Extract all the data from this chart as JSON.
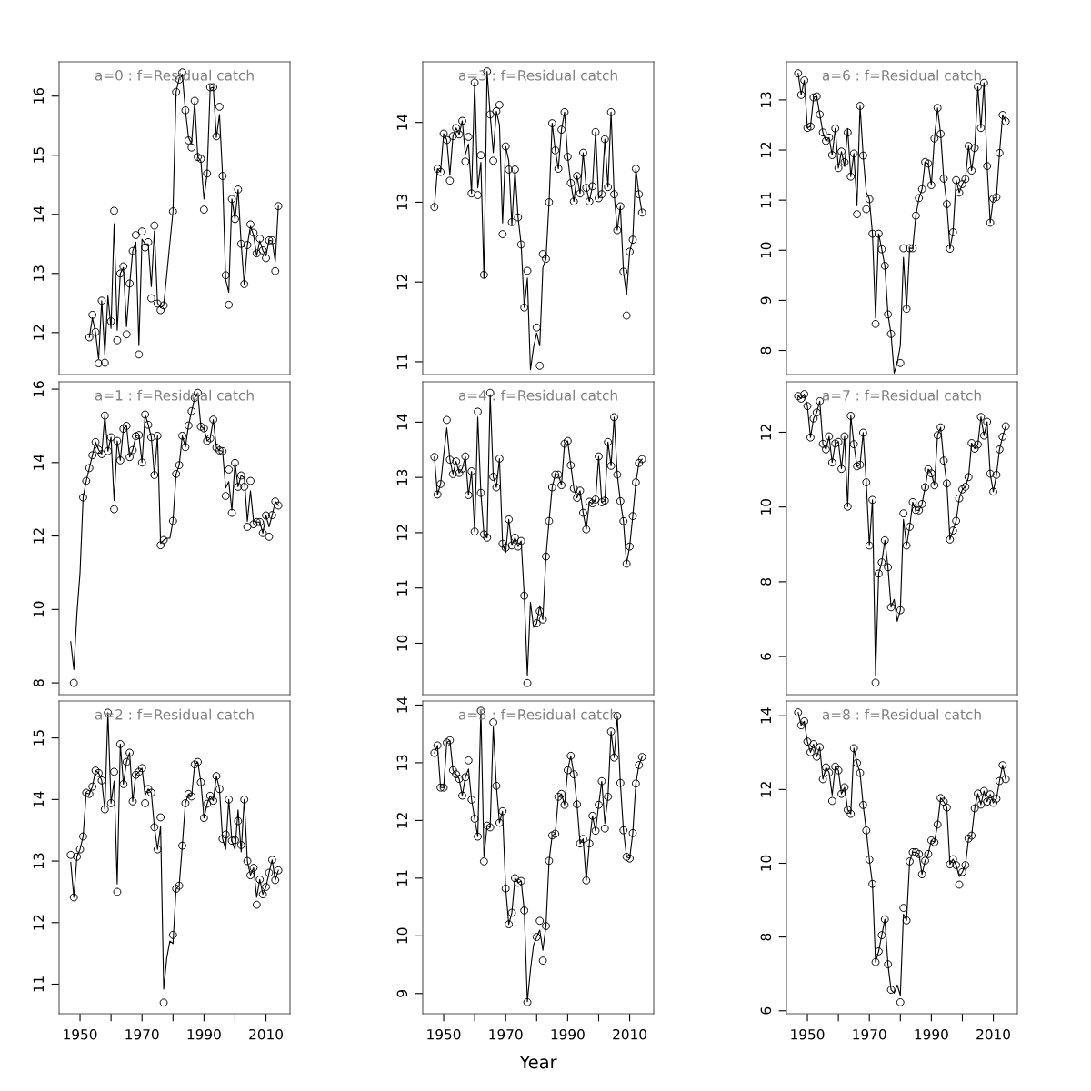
{
  "chart_data": [
    {
      "type": "line",
      "title": "a=0 : f=Residual catch",
      "tick_labels": "y",
      "xlim": [
        1943.24,
        2017.76
      ],
      "ylim": [
        11.29,
        16.58
      ],
      "yticks": [
        12,
        13,
        14,
        15,
        16
      ],
      "x": [
        1953,
        1954,
        1955,
        1956,
        1957,
        1958,
        1959,
        1960,
        1961,
        1962,
        1963,
        1964,
        1965,
        1966,
        1967,
        1968,
        1969,
        1970,
        1971,
        1972,
        1973,
        1974,
        1975,
        1976,
        1977,
        1978,
        1979,
        1980,
        1981,
        1982,
        1983,
        1984,
        1985,
        1986,
        1987,
        1988,
        1989,
        1990,
        1991,
        1992,
        1993,
        1994,
        1995,
        1996,
        1997,
        1998,
        1999,
        2000,
        2001,
        2002,
        2003,
        2004,
        2005,
        2006,
        2007,
        2008,
        2009,
        2010,
        2011,
        2012,
        2013,
        2014
      ],
      "series": [
        {
          "type": "line",
          "color": "#000000",
          "values": [
            11.92,
            12.25,
            12.0,
            11.55,
            12.54,
            11.63,
            12.62,
            12.07,
            13.84,
            12.04,
            13.0,
            13.1,
            12.1,
            12.8,
            13.38,
            13.53,
            11.78,
            13.58,
            13.5,
            13.5,
            12.78,
            13.72,
            12.5,
            12.42,
            12.46,
            12.99,
            13.52,
            14.05,
            16.07,
            16.3,
            16.37,
            15.76,
            15.3,
            15.2,
            15.9,
            14.97,
            14.9,
            14.26,
            14.69,
            16.13,
            16.15,
            15.3,
            15.69,
            14.65,
            12.9,
            12.68,
            14.26,
            13.92,
            14.42,
            13.5,
            12.81,
            13.48,
            13.8,
            13.65,
            13.3,
            13.55,
            13.39,
            13.3,
            13.56,
            13.55,
            13.2,
            14.14
          ]
        },
        {
          "type": "scatter",
          "color": "#000000",
          "marker": "circle",
          "values": [
            11.92,
            12.3,
            12.01,
            11.48,
            12.54,
            11.49,
            null,
            12.19,
            14.06,
            11.87,
            13.0,
            13.12,
            11.97,
            12.83,
            13.38,
            13.65,
            11.63,
            13.71,
            13.44,
            13.53,
            12.58,
            13.81,
            12.49,
            12.38,
            12.46,
            null,
            null,
            14.05,
            16.07,
            16.28,
            16.4,
            15.76,
            15.25,
            15.13,
            15.92,
            14.97,
            14.94,
            14.08,
            14.69,
            16.15,
            16.15,
            15.32,
            15.82,
            14.65,
            12.97,
            12.47,
            14.26,
            13.92,
            14.42,
            13.5,
            12.82,
            13.48,
            13.83,
            13.69,
            13.34,
            13.59,
            13.39,
            13.26,
            13.56,
            13.56,
            13.04,
            14.14
          ]
        }
      ]
    },
    {
      "type": "line",
      "title": "a=3 : f=Residual catch",
      "tick_labels": "y",
      "xlim": [
        1943.24,
        2017.76
      ],
      "ylim": [
        10.84,
        14.76
      ],
      "yticks": [
        11,
        12,
        13,
        14
      ],
      "x": [
        1947,
        1948,
        1949,
        1950,
        1951,
        1952,
        1953,
        1954,
        1955,
        1956,
        1957,
        1958,
        1959,
        1960,
        1961,
        1962,
        1963,
        1964,
        1965,
        1966,
        1967,
        1968,
        1969,
        1970,
        1971,
        1972,
        1973,
        1974,
        1975,
        1976,
        1977,
        1978,
        1979,
        1980,
        1981,
        1982,
        1983,
        1984,
        1985,
        1986,
        1987,
        1988,
        1989,
        1990,
        1991,
        1992,
        1993,
        1994,
        1995,
        1996,
        1997,
        1998,
        1999,
        2000,
        2001,
        2002,
        2003,
        2004,
        2005,
        2006,
        2007,
        2008,
        2009,
        2010,
        2011,
        2012,
        2013,
        2014
      ],
      "series": [
        {
          "type": "line",
          "color": "#000000",
          "values": [
            12.94,
            13.42,
            13.38,
            13.86,
            13.78,
            13.34,
            13.83,
            13.93,
            13.85,
            14.02,
            13.6,
            13.73,
            13.11,
            14.5,
            13.18,
            13.5,
            12.05,
            14.64,
            14.1,
            13.62,
            14.14,
            13.97,
            12.74,
            13.7,
            13.52,
            12.72,
            13.41,
            12.81,
            12.47,
            11.68,
            12.05,
            10.9,
            11.18,
            11.36,
            11.2,
            12.18,
            12.29,
            13.0,
            13.99,
            13.65,
            13.42,
            13.91,
            14.13,
            13.57,
            13.24,
            13.01,
            13.33,
            13.11,
            13.62,
            13.18,
            13.01,
            13.2,
            13.88,
            13.05,
            13.1,
            13.79,
            13.19,
            14.13,
            13.1,
            12.65,
            12.95,
            12.13,
            11.84,
            12.38,
            12.53,
            13.42,
            13.1,
            12.87
          ]
        },
        {
          "type": "scatter",
          "color": "#000000",
          "marker": "circle",
          "values": [
            12.94,
            13.42,
            13.38,
            13.86,
            13.78,
            13.27,
            13.83,
            13.93,
            13.85,
            14.02,
            13.51,
            13.82,
            13.11,
            14.5,
            13.09,
            13.59,
            12.09,
            14.64,
            14.1,
            13.52,
            14.14,
            14.22,
            12.6,
            13.7,
            13.41,
            12.75,
            13.41,
            12.81,
            12.47,
            11.68,
            12.14,
            null,
            null,
            11.43,
            10.95,
            12.35,
            12.29,
            13.0,
            13.99,
            13.65,
            13.42,
            13.91,
            14.13,
            13.57,
            13.24,
            13.01,
            13.33,
            13.11,
            13.62,
            13.18,
            13.01,
            13.2,
            13.88,
            13.05,
            13.1,
            13.79,
            13.19,
            14.13,
            13.1,
            12.65,
            12.95,
            12.13,
            11.58,
            12.38,
            12.53,
            13.42,
            13.1,
            12.87
          ]
        }
      ]
    },
    {
      "type": "line",
      "title": "a=6 : f=Residual catch",
      "tick_labels": "y",
      "xlim": [
        1943.24,
        2017.76
      ],
      "ylim": [
        7.52,
        13.76
      ],
      "yticks": [
        8,
        9,
        10,
        11,
        12,
        13
      ],
      "x": [
        1947,
        1948,
        1949,
        1950,
        1951,
        1952,
        1953,
        1954,
        1955,
        1956,
        1957,
        1958,
        1959,
        1960,
        1961,
        1962,
        1963,
        1964,
        1965,
        1966,
        1967,
        1968,
        1969,
        1970,
        1971,
        1972,
        1973,
        1974,
        1975,
        1976,
        1977,
        1978,
        1979,
        1980,
        1981,
        1982,
        1983,
        1984,
        1985,
        1986,
        1987,
        1988,
        1989,
        1990,
        1991,
        1992,
        1993,
        1994,
        1995,
        1996,
        1997,
        1998,
        1999,
        2000,
        2001,
        2002,
        2003,
        2004,
        2005,
        2006,
        2007,
        2008,
        2009,
        2010,
        2011,
        2012,
        2013,
        2014
      ],
      "series": [
        {
          "type": "line",
          "color": "#000000",
          "values": [
            13.53,
            13.1,
            13.39,
            12.44,
            12.47,
            13.05,
            13.07,
            12.71,
            12.35,
            12.18,
            12.25,
            11.9,
            12.43,
            11.64,
            11.97,
            11.67,
            12.43,
            11.47,
            11.93,
            10.89,
            12.88,
            11.89,
            11.16,
            11.02,
            10.33,
            8.65,
            10.33,
            10.02,
            9.69,
            8.72,
            8.33,
            7.55,
            7.75,
            8.1,
            9.86,
            8.83,
            10.04,
            10.04,
            10.69,
            11.04,
            11.22,
            11.76,
            11.73,
            11.3,
            12.23,
            12.84,
            12.32,
            11.43,
            10.92,
            10.03,
            10.36,
            11.4,
            11.15,
            11.32,
            11.42,
            12.08,
            11.59,
            12.04,
            13.26,
            12.44,
            13.34,
            11.68,
            10.55,
            11.03,
            11.06,
            11.94,
            12.7,
            12.57
          ]
        },
        {
          "type": "scatter",
          "color": "#000000",
          "marker": "circle",
          "values": [
            13.53,
            13.1,
            13.39,
            12.44,
            12.47,
            13.05,
            13.07,
            12.71,
            12.35,
            12.18,
            12.25,
            11.9,
            12.43,
            11.64,
            11.97,
            11.76,
            12.35,
            11.47,
            11.93,
            10.72,
            12.88,
            11.89,
            10.82,
            11.02,
            10.33,
            8.53,
            10.33,
            10.02,
            9.69,
            8.72,
            8.33,
            null,
            null,
            7.75,
            10.04,
            8.83,
            10.04,
            10.04,
            10.69,
            11.04,
            11.22,
            11.76,
            11.73,
            11.3,
            12.23,
            12.84,
            12.32,
            11.43,
            10.92,
            10.03,
            10.36,
            11.4,
            11.15,
            11.32,
            11.42,
            12.08,
            11.59,
            12.04,
            13.26,
            12.44,
            13.34,
            11.68,
            10.55,
            11.03,
            11.06,
            11.94,
            12.7,
            12.57
          ]
        }
      ]
    },
    {
      "type": "line",
      "title": "a=1 : f=Residual catch",
      "tick_labels": "y",
      "xlim": [
        1943.24,
        2017.76
      ],
      "ylim": [
        7.68,
        16.2
      ],
      "yticks": [
        8,
        10,
        12,
        14,
        16
      ],
      "x": [
        1947,
        1948,
        1949,
        1950,
        1951,
        1952,
        1953,
        1954,
        1955,
        1956,
        1957,
        1958,
        1959,
        1960,
        1961,
        1962,
        1963,
        1964,
        1965,
        1966,
        1967,
        1968,
        1969,
        1970,
        1971,
        1972,
        1973,
        1974,
        1975,
        1976,
        1977,
        1978,
        1979,
        1980,
        1981,
        1982,
        1983,
        1984,
        1985,
        1986,
        1987,
        1988,
        1989,
        1990,
        1991,
        1992,
        1993,
        1994,
        1995,
        1996,
        1997,
        1998,
        1999,
        2000,
        2001,
        2002,
        2003,
        2004,
        2005,
        2006,
        2007,
        2008,
        2009,
        2010,
        2011,
        2012,
        2013,
        2014
      ],
      "series": [
        {
          "type": "line",
          "color": "#000000",
          "values": [
            9.12,
            8.36,
            9.9,
            11.0,
            13.05,
            13.5,
            13.85,
            14.2,
            14.56,
            14.35,
            14.23,
            15.28,
            14.31,
            14.69,
            12.97,
            14.59,
            14.06,
            14.92,
            15.0,
            14.15,
            14.34,
            14.72,
            14.75,
            14.0,
            15.31,
            15.03,
            14.69,
            13.66,
            14.73,
            11.8,
            11.89,
            11.94,
            11.94,
            12.41,
            13.69,
            13.93,
            14.73,
            14.42,
            15.01,
            15.4,
            15.76,
            15.9,
            14.98,
            14.93,
            14.59,
            14.66,
            15.17,
            14.41,
            14.33,
            14.31,
            13.31,
            13.48,
            12.7,
            13.99,
            13.34,
            13.65,
            13.59,
            12.4,
            13.23,
            12.4,
            12.38,
            12.38,
            12.08,
            12.56,
            12.25,
            12.57,
            12.94,
            12.83
          ]
        },
        {
          "type": "scatter",
          "color": "#000000",
          "marker": "circle",
          "values": [
            null,
            8.0,
            null,
            null,
            13.05,
            13.5,
            13.85,
            14.2,
            14.56,
            14.35,
            14.23,
            15.28,
            14.31,
            14.69,
            12.73,
            14.59,
            14.06,
            14.92,
            15.0,
            14.15,
            14.34,
            14.72,
            14.75,
            14.0,
            15.31,
            15.03,
            14.69,
            13.66,
            14.73,
            11.75,
            11.89,
            null,
            null,
            12.41,
            13.69,
            13.93,
            14.73,
            14.42,
            15.01,
            15.4,
            15.76,
            15.9,
            14.98,
            14.93,
            14.59,
            14.66,
            15.17,
            14.41,
            14.33,
            14.31,
            13.09,
            13.81,
            12.63,
            13.99,
            13.34,
            13.65,
            13.34,
            12.25,
            13.5,
            12.32,
            12.38,
            12.38,
            12.08,
            12.56,
            11.98,
            12.57,
            12.94,
            12.83
          ]
        }
      ]
    },
    {
      "type": "line",
      "title": "a=4 : f=Residual catch",
      "tick_labels": "y",
      "xlim": [
        1943.24,
        2017.76
      ],
      "ylim": [
        9.07,
        14.73
      ],
      "yticks": [
        10,
        11,
        12,
        13,
        14
      ],
      "x": [
        1947,
        1948,
        1949,
        1950,
        1951,
        1952,
        1953,
        1954,
        1955,
        1956,
        1957,
        1958,
        1959,
        1960,
        1961,
        1962,
        1963,
        1964,
        1965,
        1966,
        1967,
        1968,
        1969,
        1970,
        1971,
        1972,
        1973,
        1974,
        1975,
        1976,
        1977,
        1978,
        1979,
        1980,
        1981,
        1982,
        1983,
        1984,
        1985,
        1986,
        1987,
        1988,
        1989,
        1990,
        1991,
        1992,
        1993,
        1994,
        1995,
        1996,
        1997,
        1998,
        1999,
        2000,
        2001,
        2002,
        2003,
        2004,
        2005,
        2006,
        2007,
        2008,
        2009,
        2010,
        2011,
        2012,
        2013,
        2014
      ],
      "series": [
        {
          "type": "line",
          "color": "#000000",
          "values": [
            13.37,
            12.69,
            12.88,
            13.4,
            13.9,
            13.32,
            13.06,
            13.29,
            13.08,
            13.16,
            13.38,
            12.68,
            13.11,
            12.02,
            14.09,
            12.72,
            11.97,
            11.91,
            14.5,
            13.01,
            12.82,
            13.34,
            11.8,
            11.64,
            12.24,
            11.77,
            11.91,
            11.75,
            11.85,
            10.86,
            9.42,
            10.74,
            10.29,
            10.36,
            10.68,
            10.43,
            11.57,
            12.21,
            12.82,
            13.05,
            13.05,
            12.86,
            13.61,
            13.66,
            13.22,
            12.8,
            12.63,
            12.76,
            12.36,
            12.06,
            12.56,
            12.53,
            12.6,
            13.38,
            12.55,
            12.58,
            13.64,
            13.21,
            14.09,
            13.05,
            12.57,
            12.21,
            11.44,
            11.75,
            12.3,
            12.91,
            13.26,
            13.33
          ]
        },
        {
          "type": "scatter",
          "color": "#000000",
          "marker": "circle",
          "values": [
            13.37,
            12.69,
            12.88,
            null,
            14.04,
            13.32,
            13.06,
            13.29,
            13.08,
            13.16,
            13.38,
            12.68,
            13.11,
            12.02,
            14.19,
            12.72,
            11.97,
            11.91,
            14.53,
            13.01,
            12.82,
            13.34,
            11.8,
            11.73,
            12.24,
            11.77,
            11.91,
            11.75,
            11.85,
            10.86,
            9.28,
            null,
            null,
            10.36,
            10.58,
            10.43,
            11.57,
            12.21,
            12.82,
            13.05,
            13.05,
            12.86,
            13.61,
            13.66,
            13.22,
            12.8,
            12.63,
            12.76,
            12.36,
            12.06,
            12.56,
            12.53,
            12.6,
            13.38,
            12.55,
            12.58,
            13.64,
            13.21,
            14.09,
            13.05,
            12.57,
            12.21,
            11.44,
            11.75,
            12.3,
            12.91,
            13.26,
            13.33
          ]
        }
      ]
    },
    {
      "type": "line",
      "title": "a=7 : f=Residual catch",
      "tick_labels": "y",
      "xlim": [
        1943.24,
        2017.76
      ],
      "ylim": [
        4.98,
        13.35
      ],
      "yticks": [
        6,
        8,
        10,
        12
      ],
      "x": [
        1947,
        1948,
        1949,
        1950,
        1951,
        1952,
        1953,
        1954,
        1955,
        1956,
        1957,
        1958,
        1959,
        1960,
        1961,
        1962,
        1963,
        1964,
        1965,
        1966,
        1967,
        1968,
        1969,
        1970,
        1971,
        1972,
        1973,
        1974,
        1975,
        1976,
        1977,
        1978,
        1979,
        1980,
        1981,
        1982,
        1983,
        1984,
        1985,
        1986,
        1987,
        1988,
        1989,
        1990,
        1991,
        1992,
        1993,
        1994,
        1995,
        1996,
        1997,
        1998,
        1999,
        2000,
        2001,
        2002,
        2003,
        2004,
        2005,
        2006,
        2007,
        2008,
        2009,
        2010,
        2011,
        2012,
        2013,
        2014
      ],
      "series": [
        {
          "type": "line",
          "color": "#000000",
          "values": [
            12.97,
            12.9,
            13.02,
            12.7,
            11.86,
            12.37,
            12.53,
            12.83,
            11.69,
            11.54,
            11.89,
            11.19,
            11.7,
            11.74,
            11.02,
            11.89,
            10.01,
            12.44,
            11.68,
            11.09,
            11.13,
            11.99,
            10.66,
            8.97,
            10.19,
            5.5,
            8.22,
            8.52,
            9.11,
            8.39,
            7.32,
            7.53,
            6.94,
            7.24,
            9.67,
            8.97,
            9.47,
            10.13,
            9.92,
            9.91,
            10.08,
            10.53,
            11.01,
            10.9,
            10.58,
            11.92,
            12.13,
            11.24,
            10.63,
            9.13,
            9.37,
            9.63,
            10.23,
            10.47,
            10.54,
            10.8,
            11.71,
            11.56,
            11.67,
            12.41,
            11.91,
            12.28,
            10.89,
            10.41,
            10.86,
            11.54,
            11.88,
            12.16
          ]
        },
        {
          "type": "scatter",
          "color": "#000000",
          "marker": "circle",
          "values": [
            12.97,
            12.9,
            13.02,
            12.7,
            11.86,
            12.37,
            12.53,
            12.83,
            11.69,
            11.54,
            11.89,
            11.19,
            11.7,
            11.74,
            11.02,
            11.89,
            10.01,
            12.44,
            11.68,
            11.09,
            11.13,
            11.99,
            10.66,
            8.97,
            10.19,
            5.3,
            8.22,
            8.52,
            9.11,
            8.39,
            7.32,
            null,
            null,
            7.24,
            9.83,
            8.97,
            9.47,
            10.13,
            9.92,
            9.91,
            10.08,
            10.53,
            11.01,
            10.9,
            10.58,
            11.92,
            12.13,
            11.24,
            10.63,
            9.13,
            9.37,
            9.63,
            10.23,
            10.47,
            10.54,
            10.8,
            11.71,
            11.56,
            11.67,
            12.41,
            11.91,
            12.28,
            10.89,
            10.41,
            10.86,
            11.54,
            11.88,
            12.16
          ]
        }
      ]
    },
    {
      "type": "line",
      "title": "a=2 : f=Residual catch",
      "xlim": [
        1943.24,
        2017.76
      ],
      "ylim": [
        10.52,
        15.6
      ],
      "yticks": [
        11,
        12,
        13,
        14,
        15
      ],
      "xticks": [
        1950,
        {
          "value": 1960,
          "label": null
        },
        1970,
        {
          "value": 1980,
          "label": null
        },
        1990,
        {
          "value": 2000,
          "label": null
        },
        2010
      ],
      "x": [
        1947,
        1948,
        1949,
        1950,
        1951,
        1952,
        1953,
        1954,
        1955,
        1956,
        1957,
        1958,
        1959,
        1960,
        1961,
        1962,
        1963,
        1964,
        1965,
        1966,
        1967,
        1968,
        1969,
        1970,
        1971,
        1972,
        1973,
        1974,
        1975,
        1976,
        1977,
        1978,
        1979,
        1980,
        1981,
        1982,
        1983,
        1984,
        1985,
        1986,
        1987,
        1988,
        1989,
        1990,
        1991,
        1992,
        1993,
        1994,
        1995,
        1996,
        1997,
        1998,
        1999,
        2000,
        2001,
        2002,
        2003,
        2004,
        2005,
        2006,
        2007,
        2008,
        2009,
        2010,
        2011,
        2012,
        2013,
        2014
      ],
      "series": [
        {
          "type": "line",
          "color": "#000000",
          "values": [
            12.98,
            12.41,
            13.07,
            13.19,
            13.4,
            14.11,
            14.09,
            14.21,
            14.47,
            14.43,
            14.31,
            13.84,
            15.41,
            13.94,
            14.3,
            12.63,
            14.9,
            14.25,
            14.61,
            14.76,
            13.97,
            14.4,
            14.45,
            14.51,
            14.07,
            14.17,
            14.11,
            13.55,
            13.19,
            13.56,
            10.92,
            11.43,
            11.7,
            11.66,
            12.55,
            12.6,
            13.25,
            13.94,
            14.09,
            14.05,
            14.57,
            14.61,
            14.28,
            13.7,
            13.93,
            14.06,
            13.98,
            14.38,
            14.17,
            13.36,
            13.19,
            14.0,
            13.33,
            13.19,
            13.83,
            13.15,
            14.0,
            13.0,
            12.77,
            12.89,
            12.41,
            12.7,
            12.46,
            12.58,
            12.81,
            13.02,
            12.69,
            12.85
          ]
        },
        {
          "type": "scatter",
          "color": "#000000",
          "marker": "circle",
          "values": [
            13.1,
            12.41,
            13.07,
            13.19,
            13.4,
            14.11,
            14.09,
            14.21,
            14.47,
            14.43,
            14.31,
            13.84,
            15.41,
            13.94,
            14.45,
            12.5,
            14.9,
            14.25,
            14.61,
            14.76,
            13.97,
            14.4,
            14.45,
            14.51,
            13.94,
            14.17,
            14.11,
            13.55,
            13.19,
            13.71,
            10.7,
            null,
            null,
            11.8,
            12.55,
            12.6,
            13.25,
            13.94,
            14.09,
            14.05,
            14.57,
            14.61,
            14.28,
            13.7,
            13.93,
            14.06,
            13.98,
            14.38,
            14.17,
            13.36,
            13.43,
            14.0,
            13.33,
            13.34,
            13.65,
            13.26,
            14.0,
            13.0,
            12.77,
            12.89,
            12.29,
            12.7,
            12.46,
            12.58,
            12.81,
            13.02,
            12.69,
            12.85
          ]
        }
      ]
    },
    {
      "type": "line",
      "title": "a=5 : f=Residual catch",
      "xlabel": "Year",
      "xlim": [
        1943.24,
        2017.76
      ],
      "ylim": [
        8.65,
        14.07
      ],
      "yticks": [
        9,
        10,
        11,
        12,
        13,
        14
      ],
      "xticks": [
        1950,
        {
          "value": 1960,
          "label": null
        },
        1970,
        {
          "value": 1980,
          "label": null
        },
        1990,
        {
          "value": 2000,
          "label": null
        },
        2010
      ],
      "x": [
        1947,
        1948,
        1949,
        1950,
        1951,
        1952,
        1953,
        1954,
        1955,
        1956,
        1957,
        1958,
        1959,
        1960,
        1961,
        1962,
        1963,
        1964,
        1965,
        1966,
        1967,
        1968,
        1969,
        1970,
        1971,
        1972,
        1973,
        1974,
        1975,
        1976,
        1977,
        1978,
        1979,
        1980,
        1981,
        1982,
        1983,
        1984,
        1985,
        1986,
        1987,
        1988,
        1989,
        1990,
        1991,
        1992,
        1993,
        1994,
        1995,
        1996,
        1997,
        1998,
        1999,
        2000,
        2001,
        2002,
        2003,
        2004,
        2005,
        2006,
        2007,
        2008,
        2009,
        2010,
        2011,
        2012,
        2013,
        2014
      ],
      "series": [
        {
          "type": "line",
          "color": "#000000",
          "values": [
            13.17,
            13.3,
            12.57,
            12.57,
            13.35,
            13.39,
            12.87,
            12.8,
            12.72,
            12.43,
            12.75,
            12.89,
            12.36,
            12.03,
            11.72,
            13.9,
            11.37,
            11.91,
            11.88,
            13.62,
            12.6,
            11.96,
            12.16,
            10.82,
            10.2,
            10.4,
            11.0,
            10.92,
            10.95,
            10.44,
            8.86,
            9.41,
            9.84,
            9.98,
            10.1,
            9.75,
            10.17,
            11.3,
            11.74,
            11.77,
            12.41,
            12.46,
            12.27,
            12.87,
            13.12,
            12.8,
            12.28,
            11.6,
            11.68,
            10.96,
            11.6,
            12.08,
            11.82,
            12.27,
            12.68,
            11.95,
            12.41,
            13.54,
            13.09,
            13.81,
            12.65,
            11.83,
            11.37,
            11.34,
            11.78,
            12.64,
            12.96,
            13.1
          ]
        },
        {
          "type": "scatter",
          "color": "#000000",
          "marker": "circle",
          "values": [
            13.17,
            13.3,
            12.57,
            12.57,
            13.35,
            13.39,
            12.87,
            12.8,
            12.72,
            12.43,
            12.75,
            13.04,
            12.36,
            12.03,
            11.72,
            13.9,
            11.29,
            11.91,
            11.88,
            13.7,
            12.6,
            11.96,
            12.16,
            10.82,
            10.2,
            10.4,
            11.0,
            10.92,
            10.95,
            10.44,
            8.85,
            null,
            null,
            9.98,
            10.26,
            9.57,
            10.17,
            11.3,
            11.74,
            11.77,
            12.41,
            12.46,
            12.27,
            12.87,
            13.12,
            12.8,
            12.28,
            11.6,
            11.68,
            10.96,
            11.6,
            12.08,
            11.82,
            12.27,
            12.68,
            11.86,
            12.41,
            13.54,
            13.09,
            13.81,
            12.65,
            11.83,
            11.37,
            11.34,
            11.78,
            12.64,
            12.96,
            13.1
          ]
        }
      ]
    },
    {
      "type": "line",
      "title": "a=8 : f=Residual catch",
      "xlim": [
        1943.24,
        2017.76
      ],
      "ylim": [
        5.92,
        14.4
      ],
      "yticks": [
        6,
        8,
        10,
        12,
        14
      ],
      "xticks": [
        1950,
        {
          "value": 1960,
          "label": null
        },
        1970,
        {
          "value": 1980,
          "label": null
        },
        1990,
        {
          "value": 2000,
          "label": null
        },
        2010
      ],
      "x": [
        1947,
        1948,
        1949,
        1950,
        1951,
        1952,
        1953,
        1954,
        1955,
        1956,
        1957,
        1958,
        1959,
        1960,
        1961,
        1962,
        1963,
        1964,
        1965,
        1966,
        1967,
        1968,
        1969,
        1970,
        1971,
        1972,
        1973,
        1974,
        1975,
        1976,
        1977,
        1978,
        1979,
        1980,
        1981,
        1982,
        1983,
        1984,
        1985,
        1986,
        1987,
        1988,
        1989,
        1990,
        1991,
        1992,
        1993,
        1994,
        1995,
        1996,
        1997,
        1998,
        1999,
        2000,
        2001,
        2002,
        2003,
        2004,
        2005,
        2006,
        2007,
        2008,
        2009,
        2010,
        2011,
        2012,
        2013,
        2014
      ],
      "series": [
        {
          "type": "line",
          "color": "#000000",
          "values": [
            14.09,
            13.74,
            13.85,
            13.3,
            13.01,
            13.23,
            12.89,
            13.15,
            12.28,
            12.6,
            12.46,
            11.85,
            12.62,
            12.52,
            11.88,
            12.06,
            11.45,
            11.34,
            13.12,
            12.72,
            12.45,
            11.58,
            10.89,
            10.1,
            9.44,
            7.32,
            7.61,
            8.05,
            8.48,
            7.26,
            6.57,
            6.48,
            6.7,
            6.42,
            8.62,
            8.45,
            10.05,
            10.3,
            10.3,
            10.25,
            9.7,
            10.07,
            10.25,
            10.62,
            10.57,
            11.05,
            11.77,
            11.67,
            11.51,
            9.97,
            10.11,
            9.95,
            9.64,
            9.76,
            9.95,
            10.67,
            10.75,
            11.49,
            11.89,
            11.59,
            11.96,
            11.67,
            11.87,
            11.64,
            11.75,
            12.23,
            12.66,
            12.28
          ]
        },
        {
          "type": "scatter",
          "color": "#000000",
          "marker": "circle",
          "values": [
            14.09,
            13.74,
            13.85,
            13.3,
            13.01,
            13.23,
            12.89,
            13.15,
            12.28,
            12.6,
            12.46,
            11.69,
            12.62,
            12.52,
            11.88,
            12.06,
            11.45,
            11.34,
            13.12,
            12.72,
            12.45,
            11.58,
            10.89,
            10.1,
            9.44,
            7.32,
            7.61,
            8.05,
            8.48,
            7.26,
            6.57,
            null,
            null,
            6.23,
            8.79,
            8.45,
            10.05,
            10.3,
            10.3,
            10.25,
            9.7,
            10.07,
            10.25,
            10.62,
            10.57,
            11.05,
            11.77,
            11.67,
            11.51,
            9.97,
            10.11,
            9.95,
            9.42,
            9.76,
            9.95,
            10.67,
            10.75,
            11.49,
            11.89,
            11.59,
            11.96,
            11.67,
            11.87,
            11.64,
            11.75,
            12.23,
            12.66,
            12.28
          ]
        }
      ]
    }
  ]
}
